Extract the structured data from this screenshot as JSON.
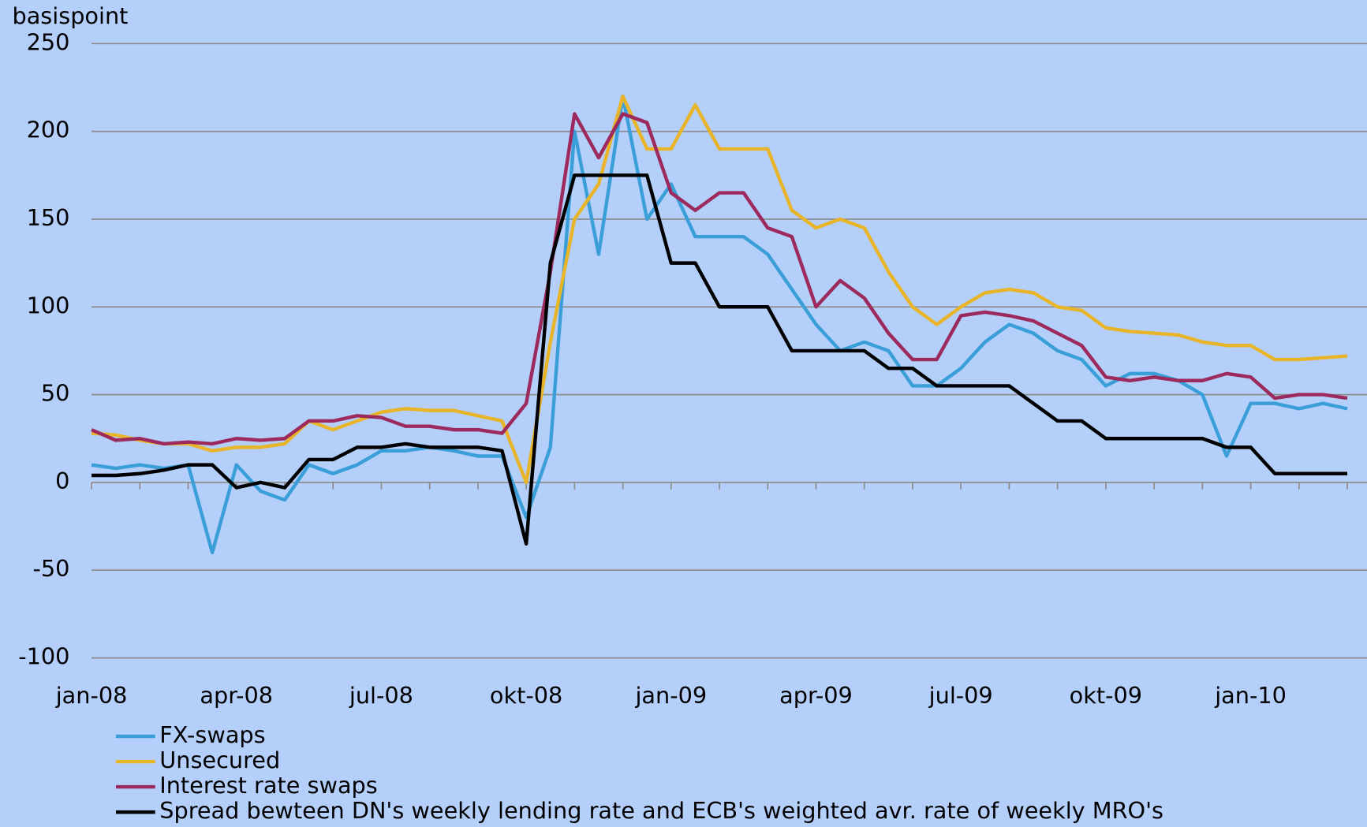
{
  "chart_data": {
    "type": "line",
    "y_label": "basispoint",
    "categories": [
      "jan-08",
      null,
      null,
      null,
      null,
      null,
      "apr-08",
      null,
      null,
      null,
      null,
      null,
      "jul-08",
      null,
      null,
      null,
      null,
      null,
      "okt-08",
      null,
      null,
      null,
      null,
      null,
      "jan-09",
      null,
      null,
      null,
      null,
      null,
      "apr-09",
      null,
      null,
      null,
      null,
      null,
      "jul-09",
      null,
      null,
      null,
      null,
      null,
      "okt-09",
      null,
      null,
      null,
      null,
      null,
      "jan-10",
      null,
      null,
      null,
      null
    ],
    "series": [
      {
        "name": "FX-swaps",
        "color": "#3a9fd8",
        "values": [
          10,
          8,
          10,
          8,
          10,
          -40,
          10,
          -5,
          -10,
          10,
          5,
          10,
          18,
          18,
          20,
          18,
          15,
          15,
          -20,
          20,
          200,
          130,
          220,
          150,
          170,
          140,
          140,
          140,
          130,
          110,
          90,
          75,
          80,
          75,
          55,
          55,
          65,
          80,
          90,
          85,
          75,
          70,
          55,
          62,
          62,
          58,
          50,
          15,
          45,
          45,
          42,
          45,
          42
        ]
      },
      {
        "name": "Unsecured",
        "color": "#e8b52a",
        "values": [
          28,
          27,
          24,
          22,
          22,
          18,
          20,
          20,
          22,
          35,
          30,
          35,
          40,
          42,
          41,
          41,
          38,
          35,
          0,
          80,
          150,
          170,
          220,
          190,
          190,
          215,
          190,
          190,
          190,
          155,
          145,
          150,
          145,
          120,
          100,
          90,
          100,
          108,
          110,
          108,
          100,
          98,
          88,
          86,
          85,
          84,
          80,
          78,
          78,
          70,
          70,
          71,
          72
        ]
      },
      {
        "name": "Interest rate swaps",
        "color": "#9c2a5c",
        "values": [
          30,
          24,
          25,
          22,
          23,
          22,
          25,
          24,
          25,
          35,
          35,
          38,
          37,
          32,
          32,
          30,
          30,
          28,
          45,
          120,
          210,
          185,
          210,
          205,
          165,
          155,
          165,
          165,
          145,
          140,
          100,
          115,
          105,
          85,
          70,
          70,
          95,
          97,
          95,
          92,
          85,
          78,
          60,
          58,
          60,
          58,
          58,
          62,
          60,
          48,
          50,
          50,
          48
        ]
      },
      {
        "name": "Spread bewteen DN's weekly lending rate and ECB's weighted avr. rate of weekly MRO's",
        "color": "#000000",
        "values": [
          4,
          4,
          5,
          7,
          10,
          10,
          -3,
          0,
          -3,
          13,
          13,
          20,
          20,
          22,
          20,
          20,
          20,
          18,
          -35,
          125,
          175,
          175,
          175,
          175,
          125,
          125,
          100,
          100,
          100,
          75,
          75,
          75,
          75,
          65,
          65,
          55,
          55,
          55,
          55,
          45,
          35,
          35,
          25,
          25,
          25,
          25,
          25,
          20,
          20,
          5,
          5,
          5,
          5
        ]
      }
    ],
    "ylim": [
      -100,
      250
    ],
    "yticks": [
      -100,
      -50,
      0,
      50,
      100,
      150,
      200,
      250
    ],
    "grid": true
  }
}
